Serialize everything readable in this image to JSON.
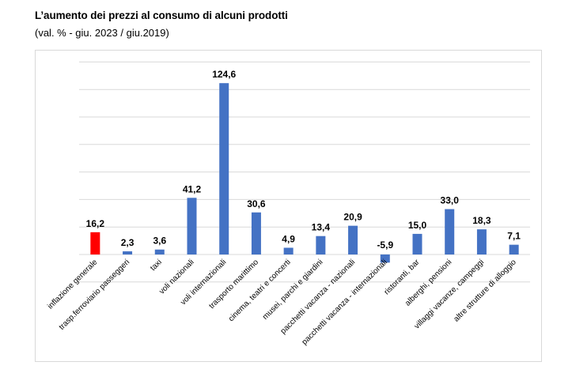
{
  "title": "L’aumento dei prezzi al consumo di alcuni prodotti",
  "subtitle": "(val. % - giu. 2023 / giu.2019)",
  "chart_data": {
    "type": "bar",
    "categories": [
      "inflazione generale",
      "trasp.ferroviario passeggeri",
      "taxi",
      "voli nazionali",
      "voli internazionali",
      "trasporto marittimo",
      "cinema, teatri e concerti",
      "musei, parchi e giardini",
      "pacchetti vacanza - nazionali",
      "pacchetti vacanza - internazionali",
      "ristoranti, bar",
      "alberghi, pensioni",
      "villaggi vacanze, campeggi",
      "altre strutture di alloggio"
    ],
    "values": [
      16.2,
      2.3,
      3.6,
      41.2,
      124.6,
      30.6,
      4.9,
      13.4,
      20.9,
      -5.9,
      15.0,
      33.0,
      18.3,
      7.1
    ],
    "value_labels": [
      "16,2",
      "2,3",
      "3,6",
      "41,2",
      "124,6",
      "30,6",
      "4,9",
      "13,4",
      "20,9",
      "-5,9",
      "15,0",
      "33,0",
      "18,3",
      "7,1"
    ],
    "ylim": [
      -20,
      140
    ],
    "grid": true,
    "colors": {
      "highlight": "#ff0000",
      "bar": "#4472c4",
      "grid": "#d9d9d9"
    },
    "highlight_index": 0
  }
}
